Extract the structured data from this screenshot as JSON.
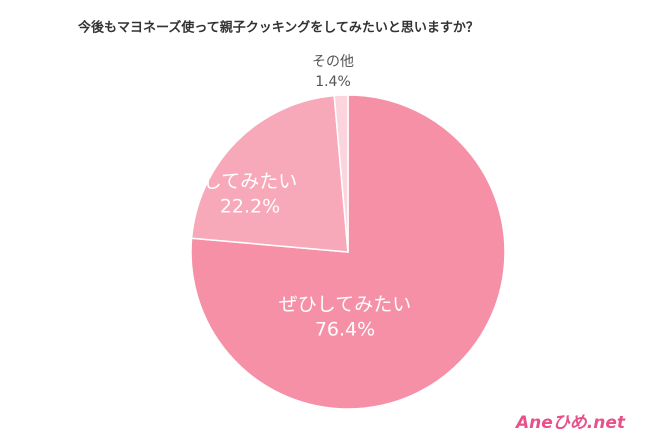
{
  "chart_data": {
    "type": "pie",
    "title": "今後もマヨネーズ使って親子クッキングをしてみたいと思いますか？",
    "categories": [
      "ぜひしてみたい",
      "してみたい",
      "その他"
    ],
    "values": [
      76.4,
      22.2,
      1.4
    ],
    "value_labels": [
      "76.4%",
      "22.2%",
      "1.4%"
    ],
    "colors": [
      "#f590a7",
      "#f7a9b9",
      "#fbd4de"
    ]
  },
  "logo": "Aneひめ.net"
}
